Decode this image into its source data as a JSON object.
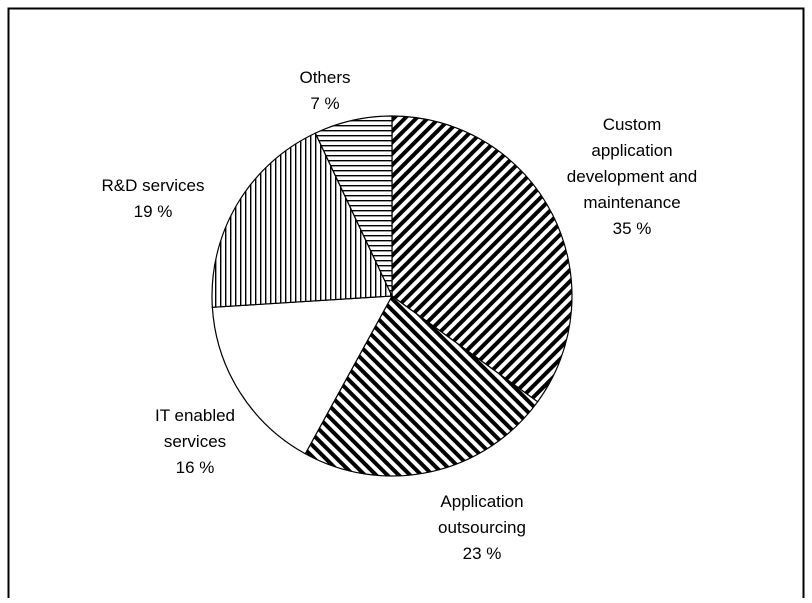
{
  "chart_data": {
    "type": "pie",
    "title": "",
    "start_angle_deg": 0,
    "direction": "clockwise",
    "slices": [
      {
        "label": [
          "Custom",
          "application",
          "development and",
          "maintenance"
        ],
        "value": 35,
        "value_label": "35 %",
        "pattern": "diag-right"
      },
      {
        "label": [
          "Application",
          "outsourcing"
        ],
        "value": 23,
        "value_label": "23 %",
        "pattern": "diag-left"
      },
      {
        "label": [
          "IT enabled",
          "services"
        ],
        "value": 16,
        "value_label": "16 %",
        "pattern": "none"
      },
      {
        "label": [
          "R&D services"
        ],
        "value": 19,
        "value_label": "19 %",
        "pattern": "vertical"
      },
      {
        "label": [
          "Others"
        ],
        "value": 7,
        "value_label": "7 %",
        "pattern": "horizontal"
      }
    ]
  }
}
